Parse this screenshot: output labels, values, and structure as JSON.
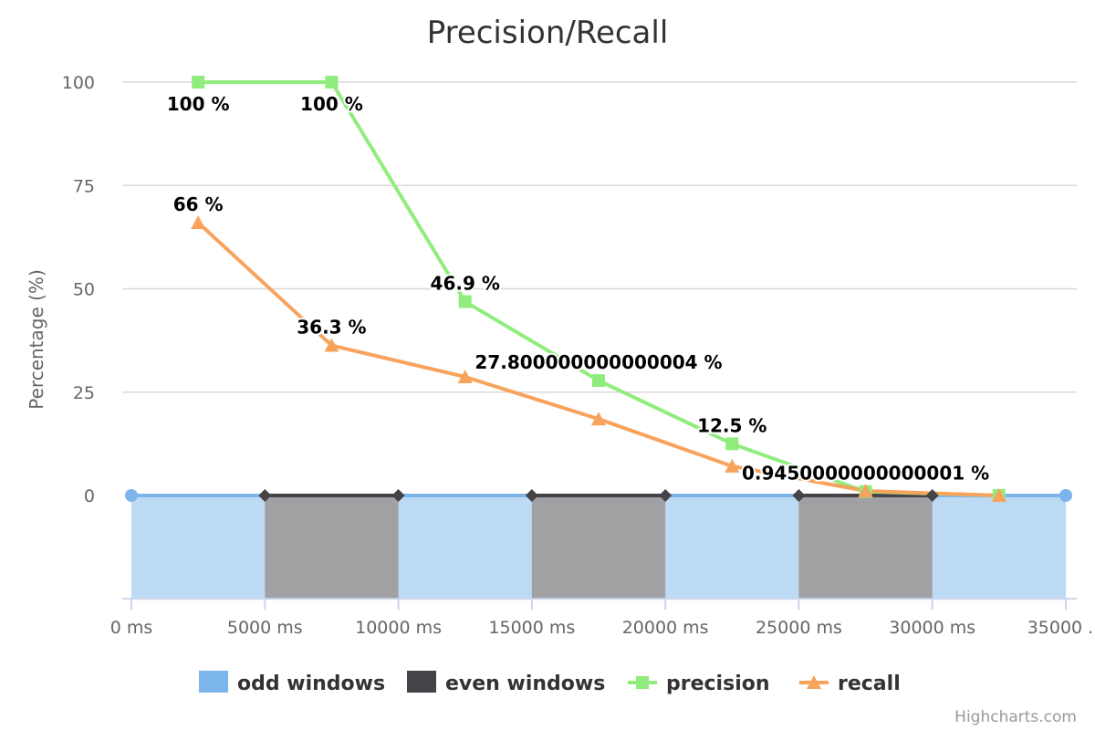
{
  "chart_data": {
    "type": "line",
    "title": "Precision/Recall",
    "ylabel": "Percentage (%)",
    "xlabel": "",
    "ylim": [
      -25,
      100
    ],
    "yticks": [
      "0",
      "25",
      "50",
      "75",
      "100"
    ],
    "xlim": [
      0,
      35000
    ],
    "xticks": [
      "0 ms",
      "5000 ms",
      "10000 ms",
      "15000 ms",
      "20000 ms",
      "25000 ms",
      "30000 ms",
      "35000 ..."
    ],
    "grid": true,
    "legend_position": "bottom",
    "series": [
      {
        "name": "odd windows",
        "type": "area",
        "color": "#7cb5ec",
        "segments": [
          [
            0,
            5000
          ],
          [
            10000,
            15000
          ],
          [
            20000,
            25000
          ],
          [
            30000,
            35000
          ]
        ],
        "line_points": [
          [
            0,
            0
          ],
          [
            5000,
            0
          ],
          [
            10000,
            0
          ],
          [
            15000,
            0
          ],
          [
            20000,
            0
          ],
          [
            25000,
            0
          ],
          [
            30000,
            0
          ],
          [
            35000,
            0
          ]
        ]
      },
      {
        "name": "even windows",
        "type": "area",
        "color": "#434348",
        "segments": [
          [
            5000,
            10000
          ],
          [
            15000,
            20000
          ],
          [
            25000,
            30000
          ]
        ]
      },
      {
        "name": "precision",
        "type": "line",
        "color": "#90ed7d",
        "marker": "square",
        "x": [
          2500,
          7500,
          12500,
          17500,
          22500,
          27500,
          32500
        ],
        "values": [
          100,
          100,
          46.9,
          27.8,
          12.5,
          0.945,
          0
        ],
        "labels": [
          "100 %",
          "100 %",
          "46.9 %",
          "27.800000000000004 %",
          "12.5 %",
          "0.9450000000000001 %",
          ""
        ]
      },
      {
        "name": "recall",
        "type": "line",
        "color": "#f7a35c",
        "marker": "triangle",
        "x": [
          2500,
          7500,
          12500,
          17500,
          22500,
          27500,
          32500
        ],
        "values": [
          66,
          36.3,
          28.7,
          18.5,
          7.1,
          1.1,
          0
        ],
        "labels": [
          "66 %",
          "36.3 %",
          "",
          "",
          "",
          "",
          ""
        ]
      }
    ],
    "credits": "Highcharts.com"
  }
}
